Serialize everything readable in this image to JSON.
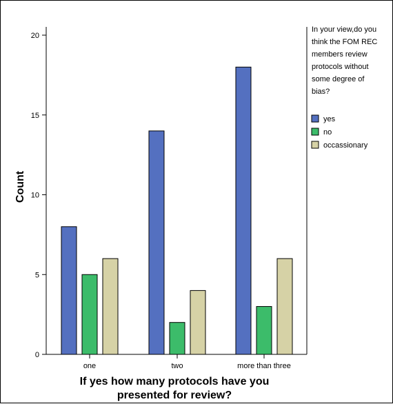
{
  "chart_data": {
    "type": "bar",
    "categories": [
      "one",
      "two",
      "more than three"
    ],
    "series": [
      {
        "name": "yes",
        "values": [
          8,
          14,
          18
        ],
        "color": "#5470c0"
      },
      {
        "name": "no",
        "values": [
          5,
          2,
          3
        ],
        "color": "#3cbc6a"
      },
      {
        "name": "occassionary",
        "values": [
          6,
          4,
          6
        ],
        "color": "#d6d2a6"
      }
    ],
    "title": "",
    "xlabel_lines": [
      "If yes how many protocols have you",
      "presented for review?"
    ],
    "ylabel": "Count",
    "ylim": [
      0,
      20
    ],
    "yticks": [
      0,
      5,
      10,
      15,
      20
    ],
    "grid": false,
    "legend_title_lines": [
      "In your view,do you",
      "think the FOM REC",
      "members review",
      "protocols without",
      "some degree of",
      "bias?"
    ],
    "legend_position": "right"
  }
}
